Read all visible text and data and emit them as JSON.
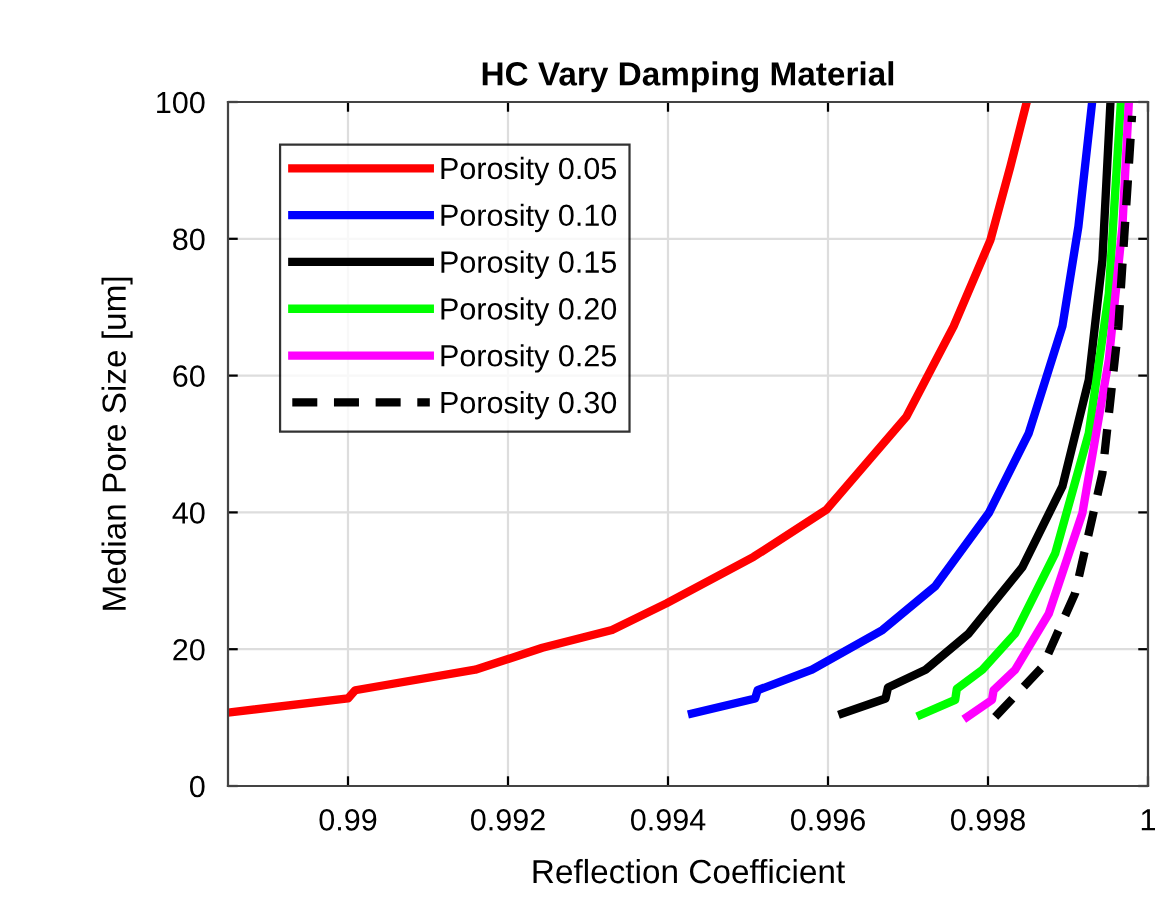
{
  "chart_data": {
    "type": "line",
    "title": "HC Vary Damping Material",
    "xlabel": "Reflection Coefficient",
    "ylabel": "Median Pore Size [um]",
    "xlim": [
      0.9885,
      1
    ],
    "xticks": [
      0.99,
      0.992,
      0.994,
      0.996,
      0.998,
      1
    ],
    "ylim": [
      0,
      100
    ],
    "yticks": [
      0,
      20,
      40,
      60,
      80,
      100
    ],
    "grid": true,
    "legend": "top left",
    "marker": "none",
    "series": [
      {
        "name": "Porosity 0.05",
        "color": "#ff0000",
        "line_style": "solid",
        "x": [
          0.98855,
          0.99,
          0.99009,
          0.99159,
          0.99243,
          0.9933,
          0.99398,
          0.99507,
          0.99598,
          0.99698,
          0.99757,
          0.99803,
          0.99828,
          0.99848
        ],
        "values": [
          10.8,
          12.8,
          14.0,
          17.0,
          20.2,
          22.8,
          26.7,
          33.5,
          40.4,
          54.0,
          67.2,
          79.8,
          90.6,
          99.8
        ]
      },
      {
        "name": "Porosity 0.10",
        "color": "#0000ff",
        "line_style": "solid",
        "x": [
          0.9943,
          0.99509,
          0.99512,
          0.9958,
          0.99668,
          0.99734,
          0.99801,
          0.99851,
          0.99893,
          0.99913,
          0.9993
        ],
        "values": [
          10.6,
          12.8,
          14.0,
          17.0,
          22.8,
          29.2,
          39.9,
          51.6,
          67.2,
          81.8,
          99.8
        ]
      },
      {
        "name": "Porosity 0.15",
        "color": "#000000",
        "line_style": "solid",
        "x": [
          0.99618,
          0.99672,
          0.99675,
          0.99722,
          0.99776,
          0.99843,
          0.99893,
          0.99926,
          0.99943,
          0.99953
        ],
        "values": [
          10.6,
          12.8,
          14.4,
          17.0,
          22.3,
          32.0,
          43.8,
          59.4,
          76.9,
          99.8
        ]
      },
      {
        "name": "Porosity 0.20",
        "color": "#00ff00",
        "line_style": "solid",
        "x": [
          0.99716,
          0.99759,
          0.99761,
          0.99793,
          0.99834,
          0.99884,
          0.99926,
          0.99951,
          0.99966
        ],
        "values": [
          10.4,
          12.6,
          14.2,
          17.0,
          22.3,
          34.0,
          51.6,
          72.0,
          99.8
        ]
      },
      {
        "name": "Porosity 0.25",
        "color": "#ff00ff",
        "line_style": "solid",
        "x": [
          0.99774,
          0.99805,
          0.99807,
          0.99834,
          0.99876,
          0.99918,
          0.99951,
          0.99968,
          0.99976
        ],
        "values": [
          10.1,
          12.6,
          14.0,
          17.0,
          25.2,
          39.9,
          62.3,
          81.8,
          99.8
        ]
      },
      {
        "name": "Porosity 0.30",
        "color": "#000000",
        "line_style": "dashed",
        "x": [
          0.99809,
          0.99868,
          0.99909,
          0.99943,
          0.99963,
          0.99976,
          0.9998
        ],
        "values": [
          10.1,
          17.4,
          28.2,
          45.7,
          67.2,
          90.6,
          98.0
        ]
      }
    ]
  }
}
